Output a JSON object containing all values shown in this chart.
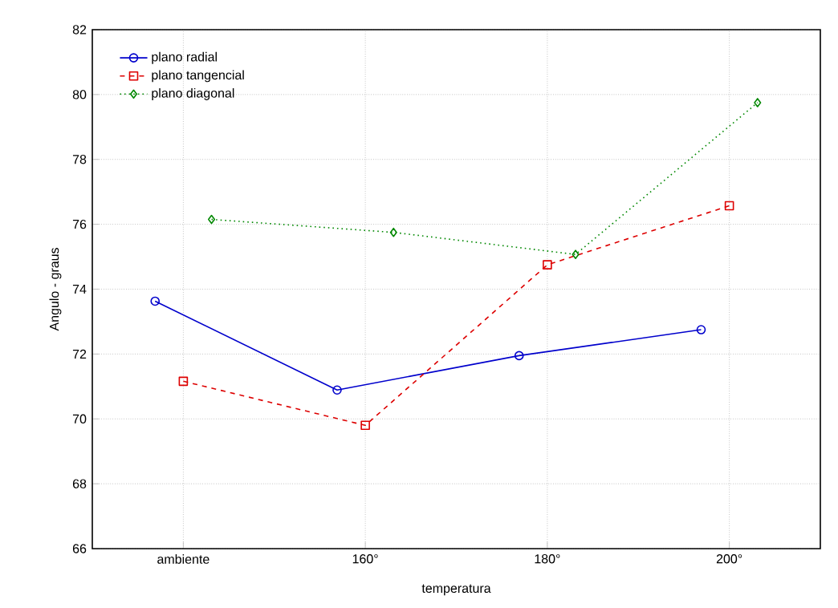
{
  "chart_data": {
    "type": "line",
    "xlabel": "temperatura",
    "ylabel": "Angulo - graus",
    "categories": [
      "ambiente",
      "160°",
      "180°",
      "200°"
    ],
    "series": [
      {
        "name": "plano radial",
        "color": "#0000cc",
        "marker": "circle",
        "line_style": "solid",
        "values": [
          73.63,
          70.89,
          71.95,
          72.75
        ]
      },
      {
        "name": "plano tangencial",
        "color": "#dd0000",
        "marker": "square",
        "line_style": "dashed",
        "values": [
          71.16,
          69.8,
          74.75,
          76.57
        ]
      },
      {
        "name": "plano diagonal",
        "color": "#008800",
        "marker": "diamond",
        "line_style": "dotted",
        "values": [
          76.15,
          75.75,
          75.07,
          79.75
        ]
      }
    ],
    "ylim": [
      66,
      82
    ],
    "yticks": [
      66,
      68,
      70,
      72,
      74,
      76,
      78,
      80,
      82
    ],
    "grid": true,
    "legend": "top left"
  }
}
